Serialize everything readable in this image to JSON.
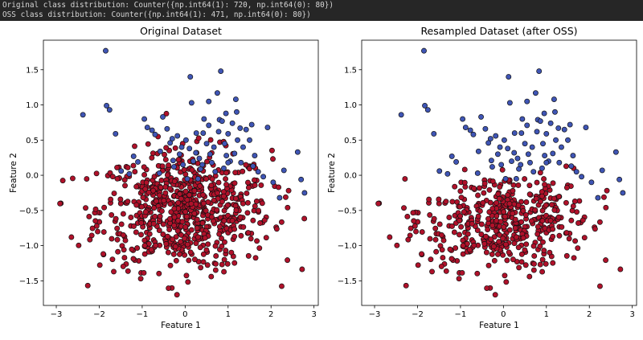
{
  "console": {
    "line1": "Original class distribution: Counter({np.int64(1): 720, np.int64(0): 80})",
    "line2": "OSS class distribution: Counter({np.int64(1): 471, np.int64(0): 80})"
  },
  "colors": {
    "background": "#262626",
    "figure": "#ffffff",
    "class_1": "#b0112a",
    "class_0": "#3f55b5",
    "edge": "#111111"
  },
  "chart_data": [
    {
      "type": "scatter",
      "title": "Original Dataset",
      "xlabel": "Feature 1",
      "ylabel": "Feature 2",
      "xlim": [
        -3.3,
        3.1
      ],
      "ylim": [
        -1.85,
        1.92
      ],
      "xticks": [
        -3,
        -2,
        -1,
        0,
        1,
        2,
        3
      ],
      "yticks": [
        -1.5,
        -1.0,
        -0.5,
        0.0,
        0.5,
        1.0,
        1.5
      ],
      "xtick_labels": [
        "−3",
        "−2",
        "−1",
        "0",
        "1",
        "2",
        "3"
      ],
      "ytick_labels": [
        "−1.5",
        "−1.0",
        "−0.5",
        "0.0",
        "0.5",
        "1.0",
        "1.5"
      ],
      "grid": false,
      "legend": "none",
      "series": [
        {
          "class": 0,
          "count": 80,
          "color": "#3f55b5",
          "points": [
            [
              -1.85,
              1.77
            ],
            [
              -1.83,
              0.99
            ],
            [
              -1.76,
              0.93
            ],
            [
              -1.62,
              0.59
            ],
            [
              -2.38,
              0.86
            ],
            [
              -1.49,
              0.06
            ],
            [
              -1.3,
              0.02
            ],
            [
              -1.1,
              0.19
            ],
            [
              -0.95,
              0.8
            ],
            [
              -0.88,
              0.68
            ],
            [
              -0.77,
              0.64
            ],
            [
              -0.7,
              0.58
            ],
            [
              -0.52,
              0.83
            ],
            [
              -0.42,
              0.66
            ],
            [
              -0.3,
              0.52
            ],
            [
              -0.28,
              0.21
            ],
            [
              -0.26,
              0.12
            ],
            [
              -0.13,
              0.3
            ],
            [
              -0.08,
              0.4
            ],
            [
              -0.05,
              0.15
            ],
            [
              0.02,
              0.5
            ],
            [
              0.1,
              0.38
            ],
            [
              0.12,
              1.4
            ],
            [
              0.15,
              1.03
            ],
            [
              0.19,
              0.2
            ],
            [
              0.25,
              0.32
            ],
            [
              0.33,
              0.24
            ],
            [
              0.36,
              0.09
            ],
            [
              0.42,
              0.6
            ],
            [
              0.44,
              0.8
            ],
            [
              0.5,
              0.45
            ],
            [
              0.55,
              0.71
            ],
            [
              0.58,
              0.3
            ],
            [
              0.62,
              0.18
            ],
            [
              0.7,
              0.05
            ],
            [
              0.75,
              1.17
            ],
            [
              0.78,
              0.62
            ],
            [
              0.8,
              0.79
            ],
            [
              0.83,
              1.48
            ],
            [
              0.86,
              0.77
            ],
            [
              0.92,
              0.45
            ],
            [
              0.95,
              0.88
            ],
            [
              1.0,
              0.59
            ],
            [
              1.05,
              0.2
            ],
            [
              1.1,
              0.74
            ],
            [
              1.15,
              0.31
            ],
            [
              1.18,
              1.08
            ],
            [
              1.22,
              0.5
            ],
            [
              1.28,
              0.67
            ],
            [
              1.3,
              0.18
            ],
            [
              1.35,
              0.4
            ],
            [
              1.42,
              0.65
            ],
            [
              1.5,
              0.5
            ],
            [
              1.58,
              0.13
            ],
            [
              1.62,
              0.28
            ],
            [
              1.7,
              0.05
            ],
            [
              1.82,
              -0.02
            ],
            [
              1.92,
              0.68
            ],
            [
              2.05,
              -0.1
            ],
            [
              2.2,
              -0.32
            ],
            [
              2.3,
              0.07
            ],
            [
              2.62,
              0.33
            ],
            [
              2.78,
              -0.25
            ],
            [
              2.7,
              -0.06
            ],
            [
              -0.58,
              0.34
            ],
            [
              -0.6,
              0.03
            ],
            [
              0.05,
              -0.05
            ],
            [
              0.3,
              -0.05
            ],
            [
              -0.35,
              0.46
            ],
            [
              0.67,
              0.4
            ],
            [
              0.96,
              0.28
            ],
            [
              1.2,
              0.9
            ],
            [
              -1.2,
              0.27
            ],
            [
              0.4,
              0.15
            ],
            [
              0.9,
              0.1
            ],
            [
              1.55,
              0.72
            ],
            [
              -0.18,
              0.56
            ],
            [
              0.26,
              0.6
            ],
            [
              1.0,
              0.18
            ],
            [
              0.55,
              1.05
            ]
          ]
        },
        {
          "class": 1,
          "count": 720,
          "color": "#b0112a",
          "points": "720 points concentrated around (0, -0.5), spread roughly -3.1…2.8 on Feature 1 and -1.7…0.85 on Feature 2"
        }
      ]
    },
    {
      "type": "scatter",
      "title": "Resampled Dataset (after OSS)",
      "xlabel": "Feature 1",
      "ylabel": "Feature 2",
      "xlim": [
        -3.3,
        3.1
      ],
      "ylim": [
        -1.85,
        1.92
      ],
      "xticks": [
        -3,
        -2,
        -1,
        0,
        1,
        2,
        3
      ],
      "yticks": [
        -1.5,
        -1.0,
        -0.5,
        0.0,
        0.5,
        1.0,
        1.5
      ],
      "xtick_labels": [
        "−3",
        "−2",
        "−1",
        "0",
        "1",
        "2",
        "3"
      ],
      "ytick_labels": [
        "−1.5",
        "−1.0",
        "−0.5",
        "0.0",
        "0.5",
        "1.0",
        "1.5"
      ],
      "grid": false,
      "legend": "none",
      "series": [
        {
          "class": 0,
          "count": 80,
          "color": "#3f55b5",
          "points": "same 80 minority points as the original dataset"
        },
        {
          "class": 1,
          "count": 471,
          "color": "#b0112a",
          "points": "471 majority points retained after One-Sided Selection"
        }
      ]
    }
  ]
}
